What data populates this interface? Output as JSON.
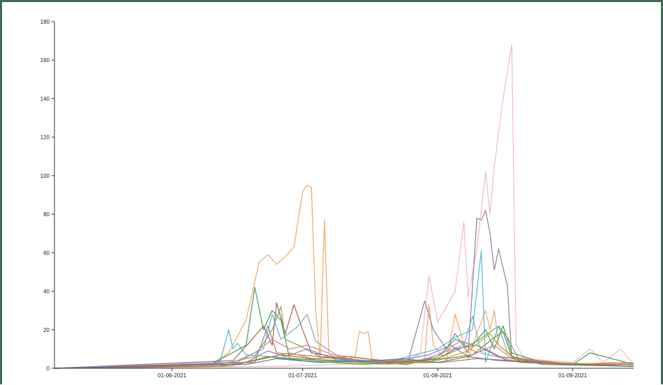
{
  "chart_data": {
    "type": "line",
    "title": "",
    "xlabel": "",
    "ylabel": "",
    "x_start": "2021-05-05",
    "x_end": "2021-09-15",
    "ylim": [
      0,
      180
    ],
    "yticks": [
      0,
      20,
      40,
      60,
      80,
      100,
      120,
      140,
      160,
      180
    ],
    "xticks": [
      {
        "date": "2021-06-01",
        "label": "01-06-2021"
      },
      {
        "date": "2021-07-01",
        "label": "01-07-2021"
      },
      {
        "date": "2021-08-01",
        "label": "01-08-2021"
      },
      {
        "date": "2021-09-01",
        "label": "01-09-2021"
      }
    ],
    "grid": false,
    "legend": "none",
    "series": [
      {
        "color": "#f4a261",
        "points": [
          [
            "2021-05-05",
            0
          ],
          [
            "2021-06-10",
            2
          ],
          [
            "2021-06-14",
            8
          ],
          [
            "2021-06-18",
            25
          ],
          [
            "2021-06-21",
            55
          ],
          [
            "2021-06-23",
            59
          ],
          [
            "2021-06-25",
            54
          ],
          [
            "2021-06-27",
            58
          ],
          [
            "2021-06-29",
            63
          ],
          [
            "2021-07-01",
            92
          ],
          [
            "2021-07-02",
            95
          ],
          [
            "2021-07-03",
            94
          ],
          [
            "2021-07-04",
            30
          ],
          [
            "2021-07-05",
            5
          ],
          [
            "2021-07-06",
            77
          ],
          [
            "2021-07-07",
            8
          ],
          [
            "2021-07-09",
            3
          ],
          [
            "2021-07-13",
            6
          ],
          [
            "2021-07-14",
            19
          ],
          [
            "2021-07-15",
            18
          ],
          [
            "2021-07-16",
            19
          ],
          [
            "2021-07-17",
            4
          ],
          [
            "2021-07-25",
            2
          ],
          [
            "2021-07-29",
            5
          ],
          [
            "2021-07-30",
            33
          ],
          [
            "2021-07-31",
            12
          ],
          [
            "2021-08-03",
            4
          ],
          [
            "2021-08-05",
            28
          ],
          [
            "2021-08-08",
            5
          ],
          [
            "2021-08-10",
            18
          ],
          [
            "2021-08-12",
            30
          ],
          [
            "2021-08-13",
            20
          ],
          [
            "2021-08-14",
            30
          ],
          [
            "2021-08-15",
            12
          ],
          [
            "2021-08-18",
            6
          ],
          [
            "2021-09-01",
            2
          ],
          [
            "2021-09-10",
            3
          ],
          [
            "2021-09-15",
            2
          ]
        ]
      },
      {
        "color": "#f4b6c2",
        "points": [
          [
            "2021-05-05",
            0
          ],
          [
            "2021-06-25",
            1
          ],
          [
            "2021-07-10",
            2
          ],
          [
            "2021-07-25",
            3
          ],
          [
            "2021-07-28",
            8
          ],
          [
            "2021-07-30",
            48
          ],
          [
            "2021-08-01",
            24
          ],
          [
            "2021-08-05",
            40
          ],
          [
            "2021-08-07",
            76
          ],
          [
            "2021-08-08",
            37
          ],
          [
            "2021-08-10",
            62
          ],
          [
            "2021-08-12",
            102
          ],
          [
            "2021-08-13",
            80
          ],
          [
            "2021-08-14",
            105
          ],
          [
            "2021-08-16",
            140
          ],
          [
            "2021-08-18",
            168
          ],
          [
            "2021-08-19",
            12
          ],
          [
            "2021-08-21",
            5
          ],
          [
            "2021-09-01",
            3
          ],
          [
            "2021-09-05",
            10
          ],
          [
            "2021-09-08",
            3
          ],
          [
            "2021-09-12",
            10
          ],
          [
            "2021-09-15",
            2
          ]
        ]
      },
      {
        "color": "#8e7b9a",
        "points": [
          [
            "2021-05-05",
            0
          ],
          [
            "2021-06-20",
            3
          ],
          [
            "2021-06-23",
            22
          ],
          [
            "2021-06-25",
            8
          ],
          [
            "2021-07-25",
            2
          ],
          [
            "2021-07-29",
            35
          ],
          [
            "2021-07-31",
            20
          ],
          [
            "2021-08-03",
            10
          ],
          [
            "2021-08-05",
            18
          ],
          [
            "2021-08-08",
            8
          ],
          [
            "2021-08-10",
            78
          ],
          [
            "2021-08-11",
            77
          ],
          [
            "2021-08-12",
            82
          ],
          [
            "2021-08-13",
            70
          ],
          [
            "2021-08-14",
            51
          ],
          [
            "2021-08-15",
            62
          ],
          [
            "2021-08-16",
            52
          ],
          [
            "2021-08-17",
            43
          ],
          [
            "2021-08-18",
            5
          ],
          [
            "2021-08-22",
            3
          ],
          [
            "2021-09-05",
            2
          ],
          [
            "2021-09-15",
            1
          ]
        ]
      },
      {
        "color": "#48b9d6",
        "points": [
          [
            "2021-05-05",
            0
          ],
          [
            "2021-06-05",
            2
          ],
          [
            "2021-06-12",
            3
          ],
          [
            "2021-06-14",
            20
          ],
          [
            "2021-06-15",
            10
          ],
          [
            "2021-06-16",
            13
          ],
          [
            "2021-06-18",
            7
          ],
          [
            "2021-07-05",
            4
          ],
          [
            "2021-07-20",
            3
          ],
          [
            "2021-08-01",
            10
          ],
          [
            "2021-08-05",
            16
          ],
          [
            "2021-08-09",
            20
          ],
          [
            "2021-08-11",
            61
          ],
          [
            "2021-08-12",
            3
          ],
          [
            "2021-08-15",
            22
          ],
          [
            "2021-08-17",
            8
          ],
          [
            "2021-08-20",
            4
          ],
          [
            "2021-09-01",
            2
          ],
          [
            "2021-09-15",
            1
          ]
        ]
      },
      {
        "color": "#3a9a4c",
        "points": [
          [
            "2021-05-05",
            0
          ],
          [
            "2021-06-10",
            2
          ],
          [
            "2021-06-18",
            12
          ],
          [
            "2021-06-20",
            42
          ],
          [
            "2021-06-22",
            20
          ],
          [
            "2021-06-24",
            30
          ],
          [
            "2021-06-26",
            25
          ],
          [
            "2021-06-28",
            5
          ],
          [
            "2021-07-10",
            4
          ],
          [
            "2021-07-25",
            2
          ],
          [
            "2021-08-01",
            6
          ],
          [
            "2021-08-05",
            15
          ],
          [
            "2021-08-09",
            12
          ],
          [
            "2021-08-12",
            20
          ],
          [
            "2021-08-14",
            10
          ],
          [
            "2021-08-16",
            22
          ],
          [
            "2021-08-18",
            8
          ],
          [
            "2021-08-25",
            3
          ],
          [
            "2021-09-01",
            2
          ],
          [
            "2021-09-05",
            8
          ],
          [
            "2021-09-15",
            2
          ]
        ]
      },
      {
        "color": "#a85a4a",
        "points": [
          [
            "2021-05-05",
            0
          ],
          [
            "2021-06-15",
            4
          ],
          [
            "2021-06-19",
            14
          ],
          [
            "2021-06-22",
            22
          ],
          [
            "2021-06-24",
            12
          ],
          [
            "2021-06-25",
            34
          ],
          [
            "2021-06-27",
            18
          ],
          [
            "2021-06-29",
            33
          ],
          [
            "2021-07-01",
            20
          ],
          [
            "2021-07-03",
            8
          ],
          [
            "2021-07-08",
            6
          ],
          [
            "2021-07-15",
            4
          ],
          [
            "2021-07-28",
            4
          ],
          [
            "2021-08-01",
            5
          ],
          [
            "2021-08-05",
            10
          ],
          [
            "2021-08-10",
            12
          ],
          [
            "2021-08-15",
            6
          ],
          [
            "2021-09-01",
            2
          ],
          [
            "2021-09-15",
            1
          ]
        ]
      },
      {
        "color": "#5fae6a",
        "points": [
          [
            "2021-05-05",
            0
          ],
          [
            "2021-06-12",
            2
          ],
          [
            "2021-06-20",
            6
          ],
          [
            "2021-06-24",
            20
          ],
          [
            "2021-06-26",
            32
          ],
          [
            "2021-06-27",
            15
          ],
          [
            "2021-06-30",
            12
          ],
          [
            "2021-07-05",
            6
          ],
          [
            "2021-07-15",
            3
          ],
          [
            "2021-07-30",
            3
          ],
          [
            "2021-08-04",
            8
          ],
          [
            "2021-08-10",
            14
          ],
          [
            "2021-08-15",
            22
          ],
          [
            "2021-08-17",
            16
          ],
          [
            "2021-08-20",
            3
          ],
          [
            "2021-09-15",
            1
          ]
        ]
      },
      {
        "color": "#7ba3c4",
        "points": [
          [
            "2021-05-05",
            0
          ],
          [
            "2021-06-15",
            3
          ],
          [
            "2021-06-22",
            10
          ],
          [
            "2021-06-24",
            28
          ],
          [
            "2021-06-26",
            15
          ],
          [
            "2021-06-30",
            22
          ],
          [
            "2021-07-02",
            28
          ],
          [
            "2021-07-04",
            14
          ],
          [
            "2021-07-10",
            5
          ],
          [
            "2021-07-20",
            3
          ],
          [
            "2021-07-28",
            4
          ],
          [
            "2021-08-02",
            8
          ],
          [
            "2021-08-07",
            12
          ],
          [
            "2021-08-09",
            27
          ],
          [
            "2021-08-11",
            8
          ],
          [
            "2021-08-20",
            3
          ],
          [
            "2021-09-15",
            1
          ]
        ]
      },
      {
        "color": "#e07a7a",
        "points": [
          [
            "2021-05-05",
            0
          ],
          [
            "2021-06-15",
            2
          ],
          [
            "2021-06-20",
            8
          ],
          [
            "2021-06-24",
            15
          ],
          [
            "2021-06-28",
            10
          ],
          [
            "2021-07-02",
            12
          ],
          [
            "2021-07-08",
            7
          ],
          [
            "2021-07-15",
            5
          ],
          [
            "2021-07-25",
            3
          ],
          [
            "2021-08-01",
            6
          ],
          [
            "2021-08-06",
            14
          ],
          [
            "2021-08-10",
            8
          ],
          [
            "2021-08-14",
            12
          ],
          [
            "2021-08-18",
            5
          ],
          [
            "2021-09-01",
            2
          ],
          [
            "2021-09-15",
            3
          ]
        ]
      },
      {
        "color": "#9c6fbf",
        "points": [
          [
            "2021-05-05",
            0
          ],
          [
            "2021-06-18",
            3
          ],
          [
            "2021-06-23",
            9
          ],
          [
            "2021-06-27",
            6
          ],
          [
            "2021-07-02",
            10
          ],
          [
            "2021-07-08",
            5
          ],
          [
            "2021-07-20",
            3
          ],
          [
            "2021-07-30",
            7
          ],
          [
            "2021-08-04",
            12
          ],
          [
            "2021-08-08",
            6
          ],
          [
            "2021-08-12",
            10
          ],
          [
            "2021-08-17",
            4
          ],
          [
            "2021-09-15",
            1
          ]
        ]
      },
      {
        "color": "#c9a227",
        "points": [
          [
            "2021-05-05",
            0
          ],
          [
            "2021-06-14",
            1
          ],
          [
            "2021-06-22",
            5
          ],
          [
            "2021-06-28",
            8
          ],
          [
            "2021-07-05",
            4
          ],
          [
            "2021-07-20",
            2
          ],
          [
            "2021-08-01",
            4
          ],
          [
            "2021-08-08",
            9
          ],
          [
            "2021-08-13",
            18
          ],
          [
            "2021-08-15",
            12
          ],
          [
            "2021-08-20",
            3
          ],
          [
            "2021-09-15",
            2
          ]
        ]
      },
      {
        "color": "#6b8e23",
        "points": [
          [
            "2021-05-05",
            0
          ],
          [
            "2021-06-16",
            2
          ],
          [
            "2021-06-23",
            6
          ],
          [
            "2021-07-01",
            4
          ],
          [
            "2021-07-15",
            2
          ],
          [
            "2021-08-03",
            5
          ],
          [
            "2021-08-09",
            7
          ],
          [
            "2021-08-14",
            16
          ],
          [
            "2021-08-16",
            19
          ],
          [
            "2021-08-18",
            6
          ],
          [
            "2021-08-25",
            2
          ],
          [
            "2021-09-15",
            1
          ]
        ]
      },
      {
        "color": "#d2691e",
        "points": [
          [
            "2021-05-05",
            0
          ],
          [
            "2021-06-12",
            1
          ],
          [
            "2021-06-20",
            4
          ],
          [
            "2021-06-26",
            7
          ],
          [
            "2021-07-03",
            5
          ],
          [
            "2021-07-12",
            6
          ],
          [
            "2021-07-22",
            3
          ],
          [
            "2021-08-02",
            3
          ],
          [
            "2021-08-10",
            5
          ],
          [
            "2021-08-18",
            4
          ],
          [
            "2021-09-05",
            2
          ],
          [
            "2021-09-15",
            2
          ]
        ]
      },
      {
        "color": "#4682b4",
        "points": [
          [
            "2021-05-05",
            0
          ],
          [
            "2021-06-18",
            2
          ],
          [
            "2021-06-25",
            5
          ],
          [
            "2021-07-05",
            3
          ],
          [
            "2021-07-18",
            4
          ],
          [
            "2021-07-24",
            5
          ],
          [
            "2021-08-01",
            3
          ],
          [
            "2021-08-08",
            6
          ],
          [
            "2021-08-15",
            4
          ],
          [
            "2021-08-30",
            2
          ],
          [
            "2021-09-15",
            1
          ]
        ]
      }
    ]
  }
}
